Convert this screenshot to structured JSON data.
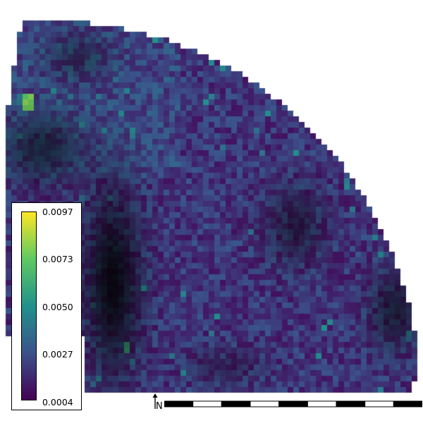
{
  "map": {
    "colormap": "viridis",
    "value_min": 0.0004,
    "value_max": 0.0097,
    "background": "#ffffff"
  },
  "legend": {
    "colors": [
      "#440154",
      "#3b528b",
      "#21918c",
      "#5ec962",
      "#fde725"
    ],
    "ticks": [
      "0.0097",
      "0.0073",
      "0.0050",
      "0.0027",
      "0.0004"
    ]
  },
  "north_arrow": {
    "icon": "north-arrow-icon",
    "label": "N"
  },
  "scale_bar": {
    "segments": 9,
    "colors": [
      "#000000",
      "#ffffff"
    ]
  }
}
